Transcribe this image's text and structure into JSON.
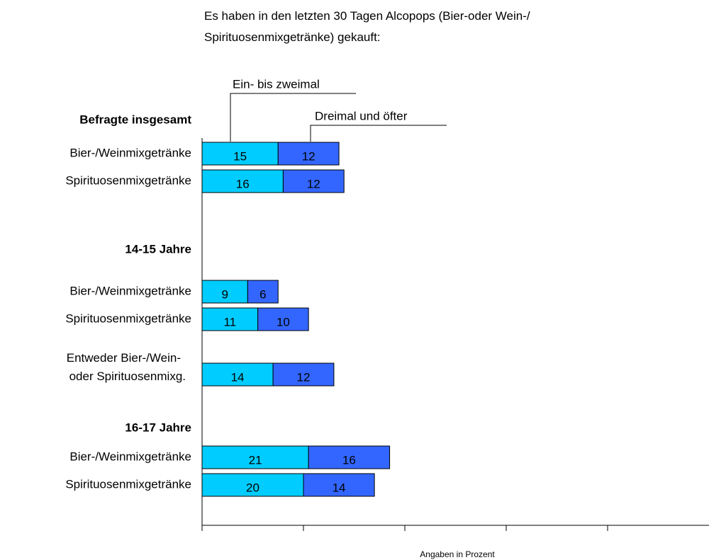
{
  "chart_data": {
    "type": "bar",
    "orientation": "horizontal",
    "stacked": true,
    "title": "Es haben in den letzten 30 Tagen Alcopops (Bier-oder Wein-/ Spirituosenmixgetränke) gekauft:",
    "xlabel": "Angaben in Prozent",
    "groups": [
      {
        "name": "Befragte insgesamt",
        "categories": [
          "Bier-/Weinmixgetränke",
          "Spirituosenmixgetränke"
        ]
      },
      {
        "name": "14-15 Jahre",
        "categories": [
          "Bier-/Weinmixgetränke",
          "Spirituosenmixgetränke",
          "Entweder Bier-/Wein-\noder Spirituosenmixg."
        ]
      },
      {
        "name": "16-17 Jahre",
        "categories": [
          "Bier-/Weinmixgetränke",
          "Spirituosenmixgetränke"
        ]
      }
    ],
    "series": [
      {
        "name": "Ein- bis zweimal",
        "color": "#00ccff",
        "values": [
          15,
          16,
          9,
          11,
          14,
          21,
          20
        ]
      },
      {
        "name": "Dreimal und öfter",
        "color": "#3366ff",
        "values": [
          12,
          12,
          6,
          10,
          12,
          16,
          14
        ]
      }
    ],
    "xlim": [
      0,
      100
    ],
    "xticks": [
      0,
      20,
      40,
      60,
      80
    ]
  }
}
